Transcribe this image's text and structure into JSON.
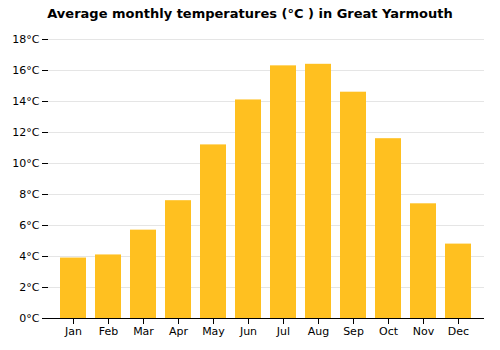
{
  "chart_data": {
    "type": "bar",
    "title": "Average monthly temperatures (°C ) in Great Yarmouth",
    "categories": [
      "Jan",
      "Feb",
      "Mar",
      "Apr",
      "May",
      "Jun",
      "Jul",
      "Aug",
      "Sep",
      "Oct",
      "Nov",
      "Dec"
    ],
    "values": [
      3.9,
      4.1,
      5.7,
      7.6,
      11.2,
      14.1,
      16.3,
      16.4,
      14.6,
      11.6,
      7.4,
      4.8
    ],
    "color": "#FFC020",
    "ylim": [
      0,
      18
    ],
    "yticks": [
      {
        "value": 0,
        "label": "0°C"
      },
      {
        "value": 2,
        "label": "2°C"
      },
      {
        "value": 4,
        "label": "4°C"
      },
      {
        "value": 6,
        "label": "6°C"
      },
      {
        "value": 8,
        "label": "8°C"
      },
      {
        "value": 10,
        "label": "10°C"
      },
      {
        "value": 12,
        "label": "12°C"
      },
      {
        "value": 14,
        "label": "14°C"
      },
      {
        "value": 16,
        "label": "16°C"
      },
      {
        "value": 18,
        "label": "18°C"
      }
    ],
    "grid": true
  }
}
